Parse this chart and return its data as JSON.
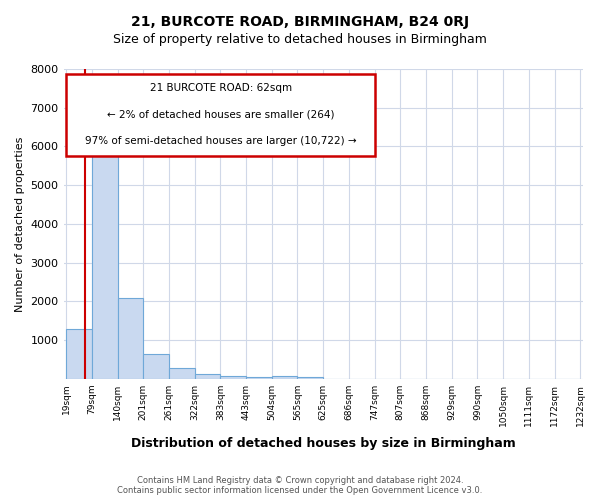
{
  "title": "21, BURCOTE ROAD, BIRMINGHAM, B24 0RJ",
  "subtitle": "Size of property relative to detached houses in Birmingham",
  "xlabel": "Distribution of detached houses by size in Birmingham",
  "ylabel": "Number of detached properties",
  "footer_line1": "Contains HM Land Registry data © Crown copyright and database right 2024.",
  "footer_line2": "Contains public sector information licensed under the Open Government Licence v3.0.",
  "bin_labels": [
    "19sqm",
    "79sqm",
    "140sqm",
    "201sqm",
    "261sqm",
    "322sqm",
    "383sqm",
    "443sqm",
    "504sqm",
    "565sqm",
    "625sqm",
    "686sqm",
    "747sqm",
    "807sqm",
    "868sqm",
    "929sqm",
    "990sqm",
    "1050sqm",
    "1111sqm",
    "1172sqm",
    "1232sqm"
  ],
  "bar_heights": [
    1300,
    6500,
    2100,
    630,
    280,
    130,
    80,
    40,
    80,
    50,
    0,
    0,
    0,
    0,
    0,
    0,
    0,
    0,
    0,
    0
  ],
  "bar_color": "#c9d9f0",
  "bar_edge_color": "#6fa8d8",
  "property_line_x": 0.72,
  "property_line_color": "#cc0000",
  "ylim": [
    0,
    8000
  ],
  "yticks": [
    0,
    1000,
    2000,
    3000,
    4000,
    5000,
    6000,
    7000,
    8000
  ],
  "annotation_text_line1": "21 BURCOTE ROAD: 62sqm",
  "annotation_text_line2": "← 2% of detached houses are smaller (264)",
  "annotation_text_line3": "97% of semi-detached houses are larger (10,722) →",
  "annotation_box_color": "#cc0000",
  "background_color": "#ffffff",
  "grid_color": "#d0d8e8"
}
